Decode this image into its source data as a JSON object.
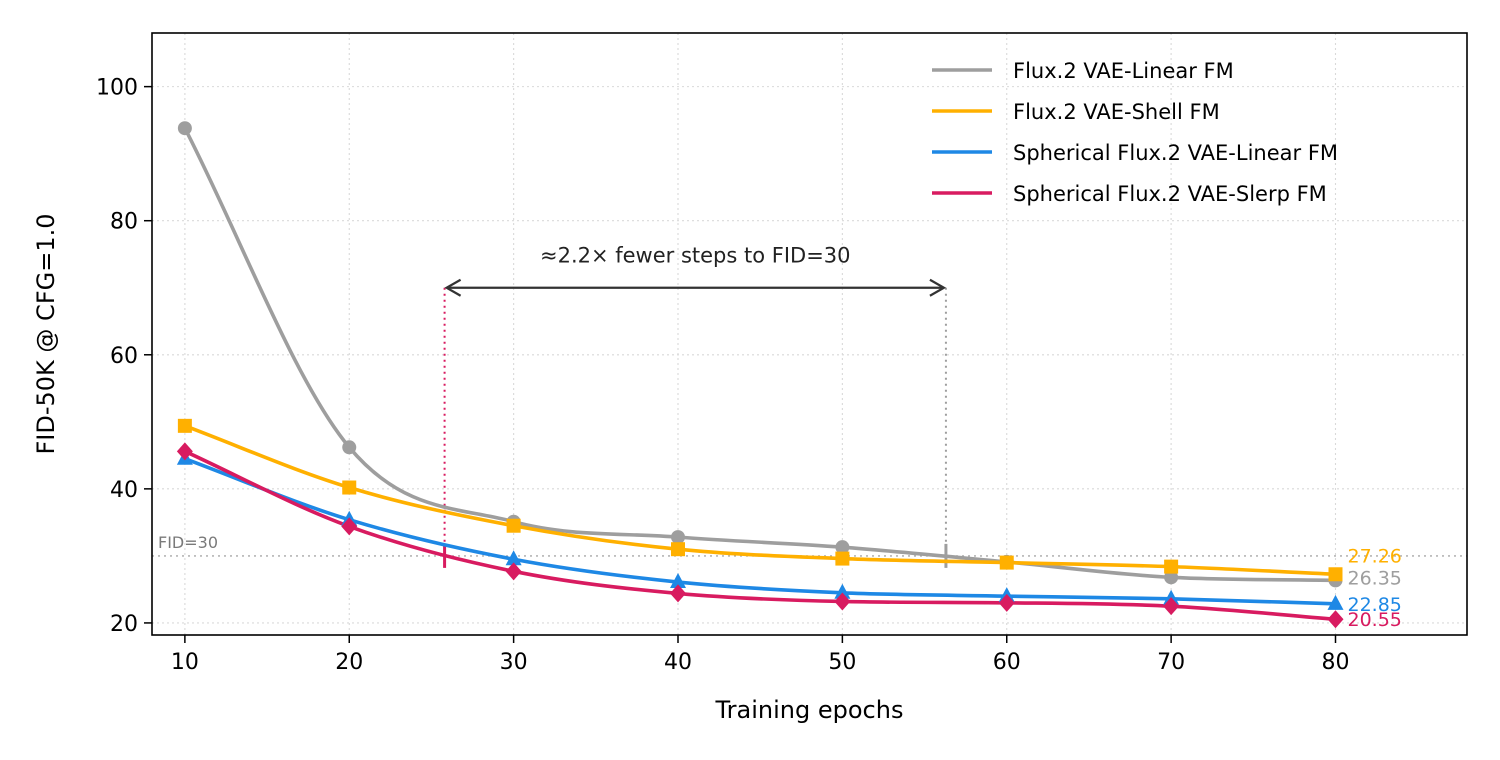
{
  "chart_data": {
    "type": "line",
    "xlabel": "Training epochs",
    "ylabel": "FID-50K @ CFG=1.0",
    "x": [
      10,
      20,
      30,
      40,
      50,
      60,
      70,
      80
    ],
    "xlim": [
      8,
      88
    ],
    "ylim": [
      18.2,
      108
    ],
    "xticks": [
      10,
      20,
      30,
      40,
      50,
      60,
      70,
      80
    ],
    "yticks": [
      20,
      40,
      60,
      80,
      100
    ],
    "grid": true,
    "legend_position": "top-right",
    "series": [
      {
        "name": "Flux.2 VAE-Linear FM",
        "color": "#9e9e9e",
        "marker": "circle",
        "values": [
          93.8,
          46.2,
          35.1,
          32.8,
          31.3,
          29.1,
          26.8,
          26.35
        ],
        "end_label": "26.35"
      },
      {
        "name": "Flux.2 VAE-Shell FM",
        "color": "#ffb000",
        "marker": "square",
        "values": [
          49.4,
          40.2,
          34.5,
          31.0,
          29.6,
          29.0,
          28.4,
          27.26
        ],
        "end_label": "27.26"
      },
      {
        "name": "Spherical Flux.2 VAE-Linear FM",
        "color": "#1e88e5",
        "marker": "triangle",
        "values": [
          44.5,
          35.4,
          29.5,
          26.1,
          24.5,
          24.0,
          23.6,
          22.85
        ],
        "end_label": "22.85"
      },
      {
        "name": "Spherical Flux.2 VAE-Slerp FM",
        "color": "#d81b60",
        "marker": "diamond",
        "values": [
          45.6,
          34.4,
          27.7,
          24.4,
          23.2,
          23.0,
          22.5,
          20.55
        ],
        "end_label": "20.55"
      }
    ],
    "reference_line": {
      "y": 30,
      "label": "FID=30"
    },
    "annotation": {
      "text": "≈2.2× fewer steps to FID=30",
      "x_start": 25.8,
      "x_end": 56.3,
      "y": 70,
      "start_color": "#d81b60",
      "end_color": "#9e9e9e"
    }
  }
}
